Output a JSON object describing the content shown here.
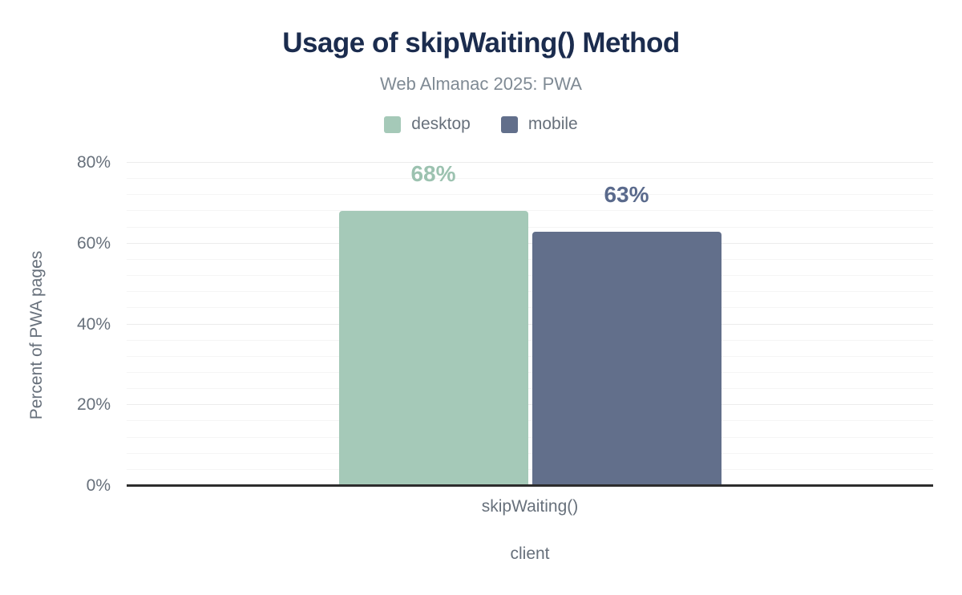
{
  "chart_data": {
    "type": "bar",
    "title": "Usage of skipWaiting() Method",
    "subtitle": "Web Almanac 2025: PWA",
    "categories": [
      "skipWaiting()"
    ],
    "series": [
      {
        "name": "desktop",
        "values": [
          68
        ],
        "data_labels": [
          "68%"
        ],
        "color": "#a5c9b8",
        "label_color": "#9cc2b0"
      },
      {
        "name": "mobile",
        "values": [
          63
        ],
        "data_labels": [
          "63%"
        ],
        "color": "#626f8b",
        "label_color": "#5a6a8c"
      }
    ],
    "xlabel": "client",
    "ylabel": "Percent of PWA pages",
    "ylim": [
      0,
      80
    ],
    "yticks": [
      {
        "value": 0,
        "label": "0%"
      },
      {
        "value": 20,
        "label": "20%"
      },
      {
        "value": 40,
        "label": "40%"
      },
      {
        "value": 60,
        "label": "60%"
      },
      {
        "value": 80,
        "label": "80%"
      }
    ],
    "minor_grid_step": 4,
    "major_grid_step": 20,
    "grid": true,
    "legend_position": "top",
    "colors": {
      "title": "#1b2c4e",
      "subtitle": "#7f8a94",
      "axis_text": "#67707b",
      "axis_line": "#2d2d2d",
      "gridline_minor": "#f5f5f5",
      "gridline_major": "#ececec",
      "background": "#ffffff"
    }
  }
}
